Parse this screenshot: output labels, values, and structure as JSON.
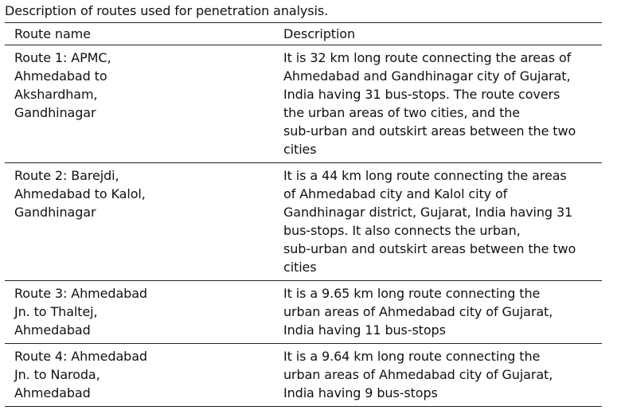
{
  "caption": "Description of routes used for penetration analysis.",
  "table": {
    "headers": [
      "Route name",
      "Description"
    ],
    "rows": [
      {
        "name_lines": [
          "Route 1: APMC,",
          "Ahmedabad to",
          "Akshardham,",
          "Gandhinagar"
        ],
        "desc_lines": [
          "It is 32 km long route connecting the areas of",
          "Ahmedabad and Gandhinagar city of Gujarat,",
          "India having 31 bus-stops. The route covers",
          "the urban areas of two cities, and the",
          "sub-urban and outskirt areas between the two",
          "cities"
        ]
      },
      {
        "name_lines": [
          "Route 2: Barejdi,",
          "Ahmedabad to Kalol,",
          "Gandhinagar"
        ],
        "desc_lines": [
          "It is a 44 km long route connecting the areas",
          "of Ahmedabad city and Kalol city of",
          "Gandhinagar district, Gujarat, India having 31",
          "bus-stops. It also connects the urban,",
          "sub-urban and outskirt areas between the two",
          "cities"
        ]
      },
      {
        "name_lines": [
          "Route 3: Ahmedabad",
          "Jn. to Thaltej,",
          "Ahmedabad"
        ],
        "desc_lines": [
          "It is a 9.65 km long route connecting the",
          "urban areas of Ahmedabad city of Gujarat,",
          "India having 11 bus-stops"
        ]
      },
      {
        "name_lines": [
          "Route 4: Ahmedabad",
          "Jn. to Naroda,",
          "Ahmedabad"
        ],
        "desc_lines": [
          "It is a 9.64 km long route connecting the",
          "urban areas of Ahmedabad city of Gujarat,",
          "India having 9 bus-stops"
        ]
      }
    ]
  }
}
